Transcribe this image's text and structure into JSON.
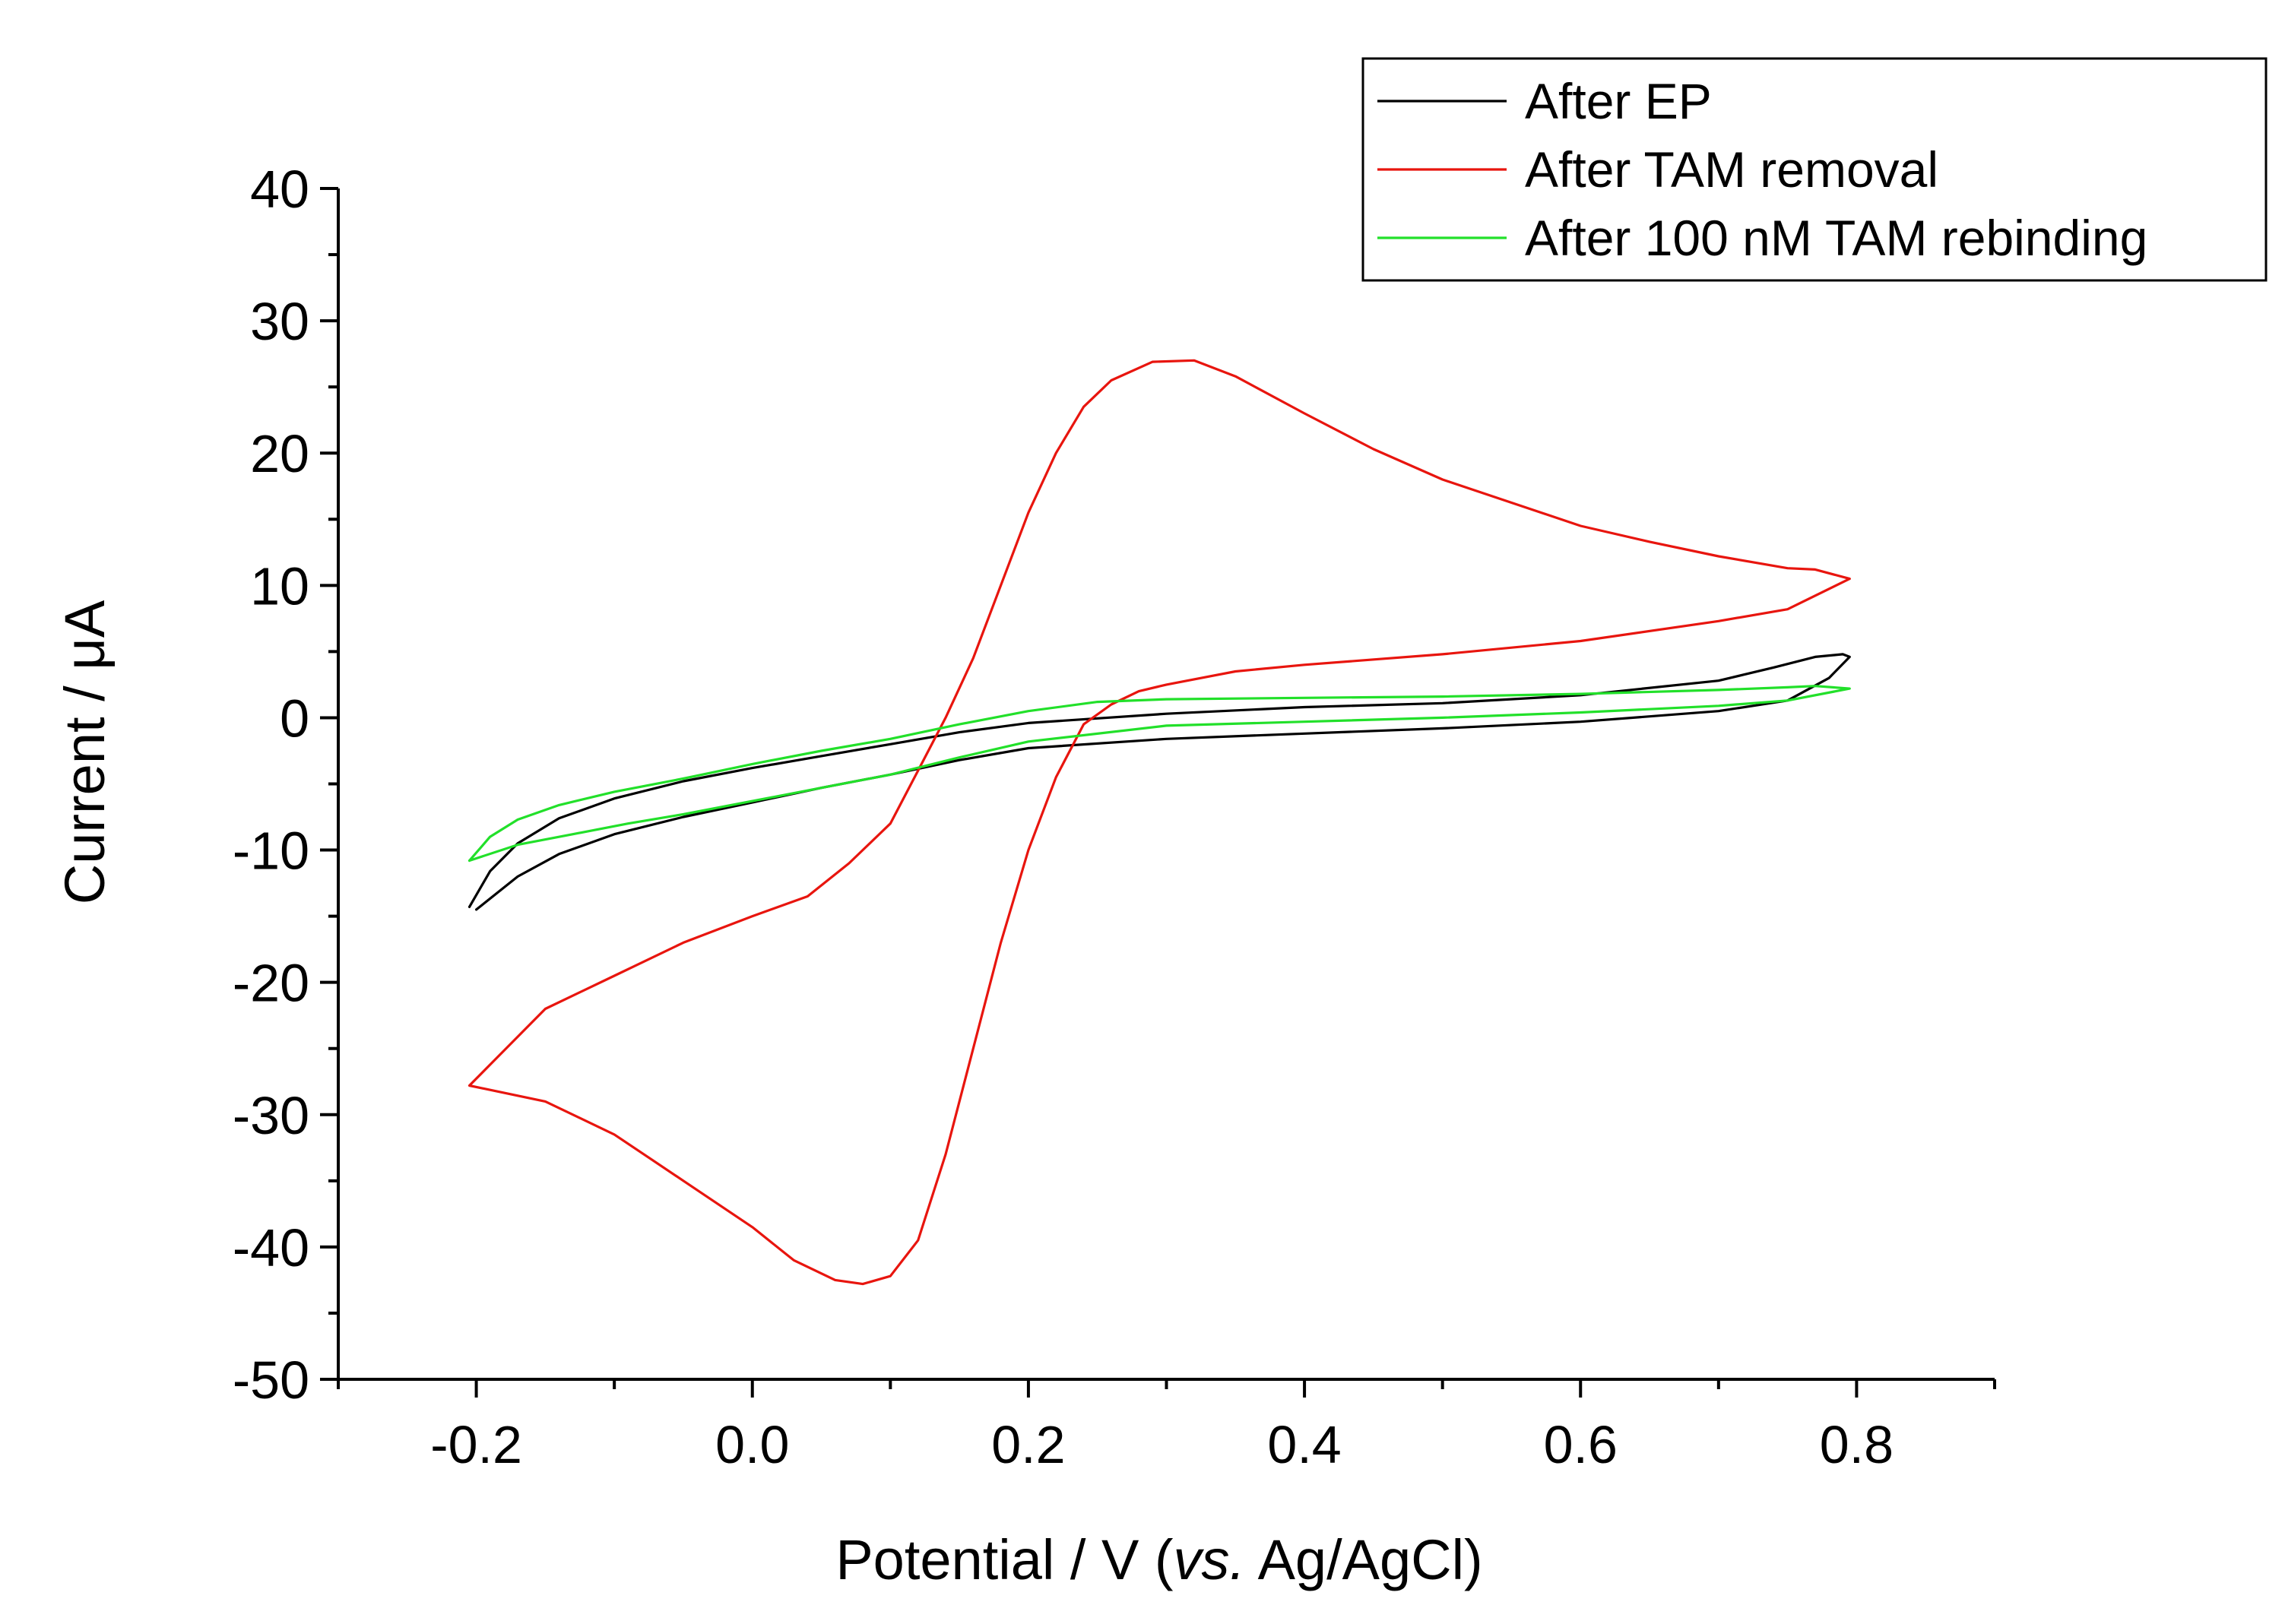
{
  "chart_data": {
    "type": "line",
    "title": "",
    "xlabel_prefix": "Potential / V (",
    "xlabel_italic": "vs.",
    "xlabel_suffix": " Ag/AgCl)",
    "ylabel": "Current / μA",
    "xlim": [
      -0.3,
      0.9
    ],
    "ylim": [
      -50,
      40
    ],
    "x_ticks": [
      -0.2,
      0.0,
      0.2,
      0.4,
      0.6,
      0.8
    ],
    "x_tick_labels": [
      "-0.2",
      "0.0",
      "0.2",
      "0.4",
      "0.6",
      "0.8"
    ],
    "y_ticks": [
      -50,
      -40,
      -30,
      -20,
      -10,
      0,
      10,
      20,
      30,
      40
    ],
    "y_tick_labels": [
      "-50",
      "-40",
      "-30",
      "-20",
      "-10",
      "0",
      "10",
      "20",
      "30",
      "40"
    ],
    "grid": false,
    "legend_position": "top-right",
    "series": [
      {
        "name": "After EP",
        "color": "#000000",
        "x": [
          -0.2,
          -0.17,
          -0.14,
          -0.1,
          -0.05,
          0.0,
          0.05,
          0.1,
          0.15,
          0.2,
          0.3,
          0.4,
          0.5,
          0.6,
          0.7,
          0.75,
          0.78,
          0.795,
          0.79,
          0.77,
          0.74,
          0.7,
          0.6,
          0.5,
          0.4,
          0.3,
          0.2,
          0.15,
          0.1,
          0.05,
          0.0,
          -0.05,
          -0.1,
          -0.14,
          -0.17,
          -0.19,
          -0.205
        ],
        "y": [
          -14.5,
          -12.0,
          -10.3,
          -8.8,
          -7.5,
          -6.4,
          -5.3,
          -4.3,
          -3.2,
          -2.3,
          -1.6,
          -1.2,
          -0.8,
          -0.3,
          0.5,
          1.3,
          3.0,
          4.6,
          4.8,
          4.6,
          3.8,
          2.8,
          1.7,
          1.1,
          0.8,
          0.3,
          -0.4,
          -1.1,
          -2.0,
          -2.9,
          -3.8,
          -4.8,
          -6.1,
          -7.6,
          -9.5,
          -11.6,
          -14.3
        ]
      },
      {
        "name": "After TAM removal",
        "color": "#e8150e",
        "x": [
          -0.205,
          -0.15,
          -0.1,
          -0.05,
          0.0,
          0.03,
          0.06,
          0.08,
          0.1,
          0.12,
          0.14,
          0.16,
          0.18,
          0.2,
          0.22,
          0.24,
          0.26,
          0.28,
          0.3,
          0.35,
          0.4,
          0.5,
          0.6,
          0.7,
          0.75,
          0.795,
          0.77,
          0.75,
          0.7,
          0.65,
          0.6,
          0.5,
          0.45,
          0.4,
          0.35,
          0.32,
          0.29,
          0.26,
          0.24,
          0.22,
          0.2,
          0.18,
          0.16,
          0.14,
          0.12,
          0.1,
          0.07,
          0.04,
          0.0,
          -0.05,
          -0.1,
          -0.15,
          -0.205
        ],
        "y": [
          -27.8,
          -29.0,
          -31.5,
          -35.0,
          -38.5,
          -41.0,
          -42.5,
          -42.8,
          -42.2,
          -39.5,
          -33.0,
          -25.0,
          -17.0,
          -10.0,
          -4.5,
          -0.5,
          1.0,
          2.0,
          2.5,
          3.5,
          4.0,
          4.8,
          5.8,
          7.3,
          8.2,
          10.5,
          11.2,
          11.3,
          12.2,
          13.3,
          14.5,
          18.0,
          20.3,
          23.0,
          25.8,
          27.0,
          26.9,
          25.5,
          23.5,
          20.0,
          15.5,
          10.0,
          4.5,
          0.0,
          -4.0,
          -8.0,
          -11.0,
          -13.5,
          -15.0,
          -17.0,
          -19.5,
          -22.0,
          -27.8
        ]
      },
      {
        "name": "After 100 nM TAM rebinding",
        "color": "#22e02a",
        "x": [
          -0.205,
          -0.17,
          -0.13,
          -0.09,
          -0.05,
          0.0,
          0.05,
          0.1,
          0.15,
          0.2,
          0.3,
          0.4,
          0.5,
          0.6,
          0.7,
          0.75,
          0.795,
          0.77,
          0.75,
          0.7,
          0.6,
          0.5,
          0.4,
          0.3,
          0.25,
          0.2,
          0.15,
          0.1,
          0.05,
          0.0,
          -0.05,
          -0.1,
          -0.14,
          -0.17,
          -0.19,
          -0.205
        ],
        "y": [
          -10.8,
          -9.6,
          -8.8,
          -8.0,
          -7.3,
          -6.3,
          -5.3,
          -4.3,
          -3.0,
          -1.8,
          -0.6,
          -0.3,
          0.0,
          0.4,
          0.9,
          1.3,
          2.2,
          2.4,
          2.3,
          2.1,
          1.8,
          1.6,
          1.5,
          1.4,
          1.2,
          0.5,
          -0.5,
          -1.6,
          -2.5,
          -3.5,
          -4.6,
          -5.6,
          -6.6,
          -7.7,
          -9.0,
          -10.8
        ]
      }
    ]
  }
}
